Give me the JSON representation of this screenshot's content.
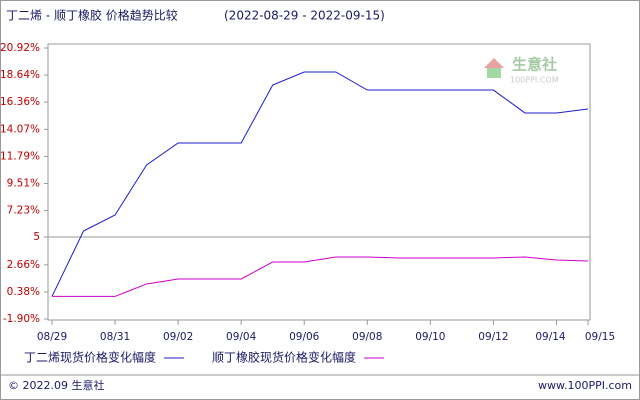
{
  "chart_data": {
    "type": "line",
    "title": "丁二烯 - 顺丁橡胶 价格趋势比较",
    "subtitle": "(2022-08-29 - 2022-09-15)",
    "categories": [
      "08/29",
      null,
      "08/31",
      null,
      "09/02",
      null,
      "09/04",
      null,
      "09/06",
      null,
      "09/08",
      null,
      "09/10",
      null,
      "09/12",
      null,
      "09/14",
      "09/15"
    ],
    "series": [
      {
        "name": "丁二烯现货价格变化幅度",
        "color": "#1c1ccc",
        "values": [
          0,
          5.51,
          6.86,
          11.07,
          12.92,
          12.92,
          12.92,
          17.8,
          18.9,
          18.9,
          17.38,
          17.38,
          17.38,
          17.38,
          17.38,
          15.45,
          15.45,
          15.78
        ]
      },
      {
        "name": "顺丁橡胶现货价格变化幅度",
        "color": "#cc00cc",
        "values": [
          0,
          0,
          0,
          1.05,
          1.47,
          1.47,
          1.47,
          2.9,
          2.9,
          3.32,
          3.32,
          3.24,
          3.24,
          3.24,
          3.24,
          3.32,
          3.07,
          2.98
        ]
      }
    ],
    "ylim": [
      -1.9,
      20.92
    ],
    "yticks": [
      {
        "value": -1.9,
        "label": "-1.90%"
      },
      {
        "value": 0.38,
        "label": "0.38%"
      },
      {
        "value": 2.66,
        "label": "2.66%"
      },
      5,
      {
        "value": 7.23,
        "label": "7.23%"
      },
      {
        "value": 9.51,
        "label": "9.51%"
      },
      {
        "value": 11.79,
        "label": "11.79%"
      },
      {
        "value": 14.07,
        "label": "14.07%"
      },
      {
        "value": 16.36,
        "label": "16.36%"
      },
      {
        "value": 18.64,
        "label": "18.64%"
      },
      {
        "value": 20.92,
        "label": "20.92%"
      }
    ],
    "reference_line": 5,
    "watermark": {
      "name": "生意社",
      "site": "100PPI.COM"
    },
    "footer": {
      "left": "© 2022.09 生意社",
      "right": "www.100PPI.com"
    }
  }
}
